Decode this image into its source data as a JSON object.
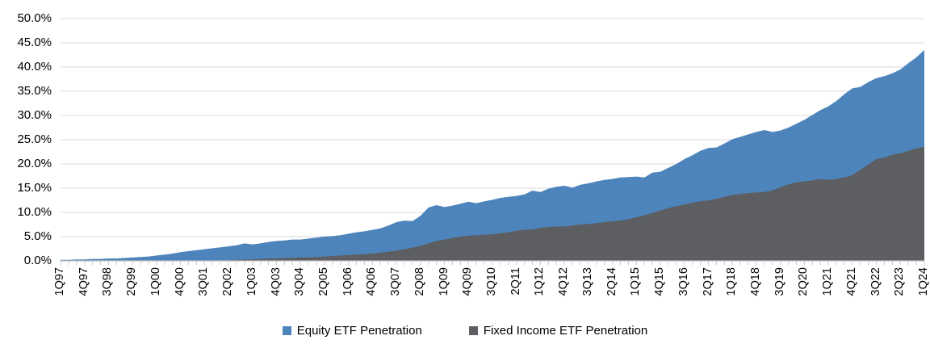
{
  "chart_data": {
    "type": "area",
    "variant": "overlapping-areas",
    "title": "",
    "xlabel": "",
    "ylabel": "",
    "ylim": [
      0,
      50
    ],
    "y_tick_step_pct": 5,
    "y_tick_labels": [
      "0.0%",
      "5.0%",
      "10.0%",
      "15.0%",
      "20.0%",
      "25.0%",
      "30.0%",
      "35.0%",
      "40.0%",
      "45.0%",
      "50.0%"
    ],
    "grid": "horizontal-only",
    "legend_position": "bottom-center",
    "x_unit": "quarter",
    "x_first": "1Q97",
    "x_last": "1Q24",
    "n_points": 109,
    "x_tick_every_n_quarters": 3,
    "x_tick_labels": [
      "1Q97",
      "4Q97",
      "3Q98",
      "2Q99",
      "1Q00",
      "4Q00",
      "3Q01",
      "2Q02",
      "1Q03",
      "4Q03",
      "3Q04",
      "2Q05",
      "1Q06",
      "4Q06",
      "3Q07",
      "2Q08",
      "1Q09",
      "4Q09",
      "3Q10",
      "2Q11",
      "1Q12",
      "4Q12",
      "3Q13",
      "2Q14",
      "1Q15",
      "4Q15",
      "3Q16",
      "2Q17",
      "1Q18",
      "4Q18",
      "3Q19",
      "2Q20",
      "1Q21",
      "4Q21",
      "3Q22",
      "2Q23",
      "1Q24"
    ],
    "series": [
      {
        "name": "Equity ETF Penetration",
        "color": "#4e84bc",
        "values_pct": [
          0.2,
          0.2,
          0.3,
          0.3,
          0.4,
          0.4,
          0.5,
          0.5,
          0.6,
          0.7,
          0.8,
          0.9,
          1.1,
          1.3,
          1.5,
          1.8,
          2.0,
          2.2,
          2.4,
          2.6,
          2.8,
          3.0,
          3.2,
          3.6,
          3.4,
          3.6,
          3.9,
          4.1,
          4.2,
          4.4,
          4.4,
          4.6,
          4.8,
          5.0,
          5.1,
          5.3,
          5.6,
          5.9,
          6.1,
          6.4,
          6.7,
          7.3,
          8.0,
          8.3,
          8.2,
          9.3,
          11.0,
          11.5,
          11.1,
          11.4,
          11.8,
          12.2,
          11.9,
          12.3,
          12.6,
          13.0,
          13.2,
          13.4,
          13.7,
          14.5,
          14.2,
          14.9,
          15.3,
          15.5,
          15.1,
          15.7,
          16.0,
          16.4,
          16.7,
          16.9,
          17.2,
          17.3,
          17.4,
          17.2,
          18.2,
          18.4,
          19.2,
          20.0,
          21.0,
          21.8,
          22.7,
          23.3,
          23.4,
          24.2,
          25.1,
          25.6,
          26.1,
          26.6,
          27.0,
          26.6,
          26.9,
          27.5,
          28.3,
          29.1,
          30.1,
          31.1,
          31.9,
          33.0,
          34.4,
          35.6,
          35.9,
          36.9,
          37.7,
          38.1,
          38.7,
          39.5,
          40.8,
          42.0,
          43.5
        ]
      },
      {
        "name": "Fixed Income ETF Penetration",
        "color": "#5c5e61",
        "values_pct": [
          0,
          0,
          0,
          0,
          0,
          0,
          0,
          0,
          0,
          0,
          0,
          0,
          0,
          0,
          0,
          0,
          0,
          0,
          0,
          0,
          0.0,
          0.1,
          0.2,
          0.3,
          0.3,
          0.4,
          0.5,
          0.5,
          0.6,
          0.6,
          0.7,
          0.7,
          0.8,
          0.9,
          1.0,
          1.1,
          1.2,
          1.3,
          1.4,
          1.5,
          1.7,
          1.9,
          2.1,
          2.4,
          2.7,
          3.1,
          3.6,
          4.1,
          4.4,
          4.7,
          5.0,
          5.2,
          5.3,
          5.4,
          5.5,
          5.7,
          5.9,
          6.2,
          6.4,
          6.5,
          6.8,
          7.0,
          7.1,
          7.1,
          7.3,
          7.5,
          7.6,
          7.8,
          8.0,
          8.2,
          8.3,
          8.6,
          9.0,
          9.4,
          9.9,
          10.4,
          10.9,
          11.3,
          11.6,
          12.0,
          12.3,
          12.5,
          12.8,
          13.2,
          13.6,
          13.8,
          14.0,
          14.1,
          14.2,
          14.5,
          15.2,
          15.8,
          16.2,
          16.4,
          16.6,
          16.9,
          16.7,
          16.9,
          17.2,
          17.7,
          18.8,
          19.9,
          21.0,
          21.3,
          21.9,
          22.2,
          22.7,
          23.2,
          23.5
        ]
      }
    ],
    "colors": {
      "gridline": "#d9d9d9",
      "axis_line": "#bfbfbf",
      "tick_mark": "#c7ccd0",
      "text": "#000000"
    }
  }
}
